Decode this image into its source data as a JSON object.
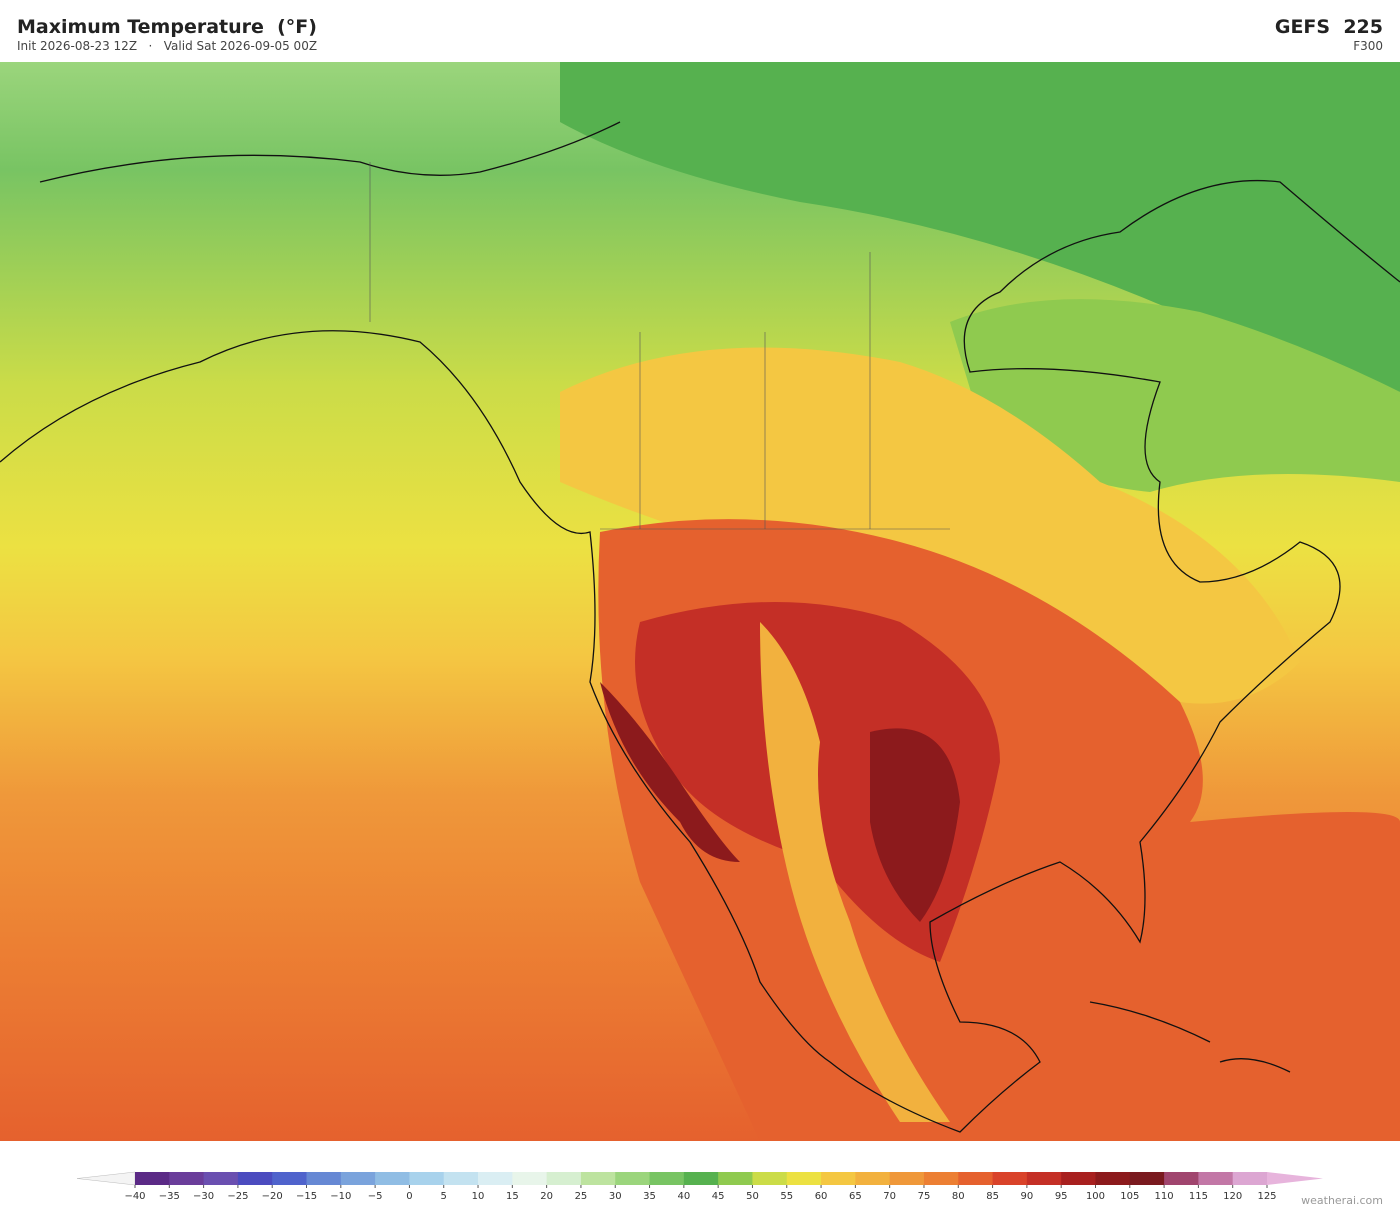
{
  "header": {
    "title": "Maximum Temperature  (°F)",
    "init": "Init 2026-08-23 12Z",
    "separator": "·",
    "valid": "Valid Sat 2026-09-05 00Z",
    "model": "GEFS  225",
    "forecast_hour": "F300"
  },
  "colorbar": {
    "labels": [
      "−40",
      "−35",
      "−30",
      "−25",
      "−20",
      "−15",
      "−10",
      "−5",
      "0",
      "5",
      "10",
      "15",
      "20",
      "25",
      "30",
      "35",
      "40",
      "45",
      "50",
      "55",
      "60",
      "65",
      "70",
      "75",
      "80",
      "85",
      "90",
      "95",
      "100",
      "105",
      "110",
      "115",
      "120",
      "125"
    ],
    "colors": [
      "#f4f4f4",
      "#5b2a86",
      "#6a3d9a",
      "#6a4fb0",
      "#4b4bbf",
      "#4f63cc",
      "#6688d4",
      "#7aa3dc",
      "#90bde4",
      "#a8d2ec",
      "#c3e2f0",
      "#daeef3",
      "#e8f5ea",
      "#d6efd0",
      "#bde39f",
      "#9bd57c",
      "#78c463",
      "#56b14f",
      "#8fca4f",
      "#cbdc48",
      "#ece142",
      "#f4c742",
      "#f2b13e",
      "#ef983a",
      "#ec7f33",
      "#e5612e",
      "#d9432a",
      "#c42f26",
      "#a8201f",
      "#8c1a1c",
      "#7a1a1f",
      "#a0456e",
      "#c277a6",
      "#dca6d2",
      "#e7b4dc"
    ]
  },
  "watermark": "weatherai.com"
}
